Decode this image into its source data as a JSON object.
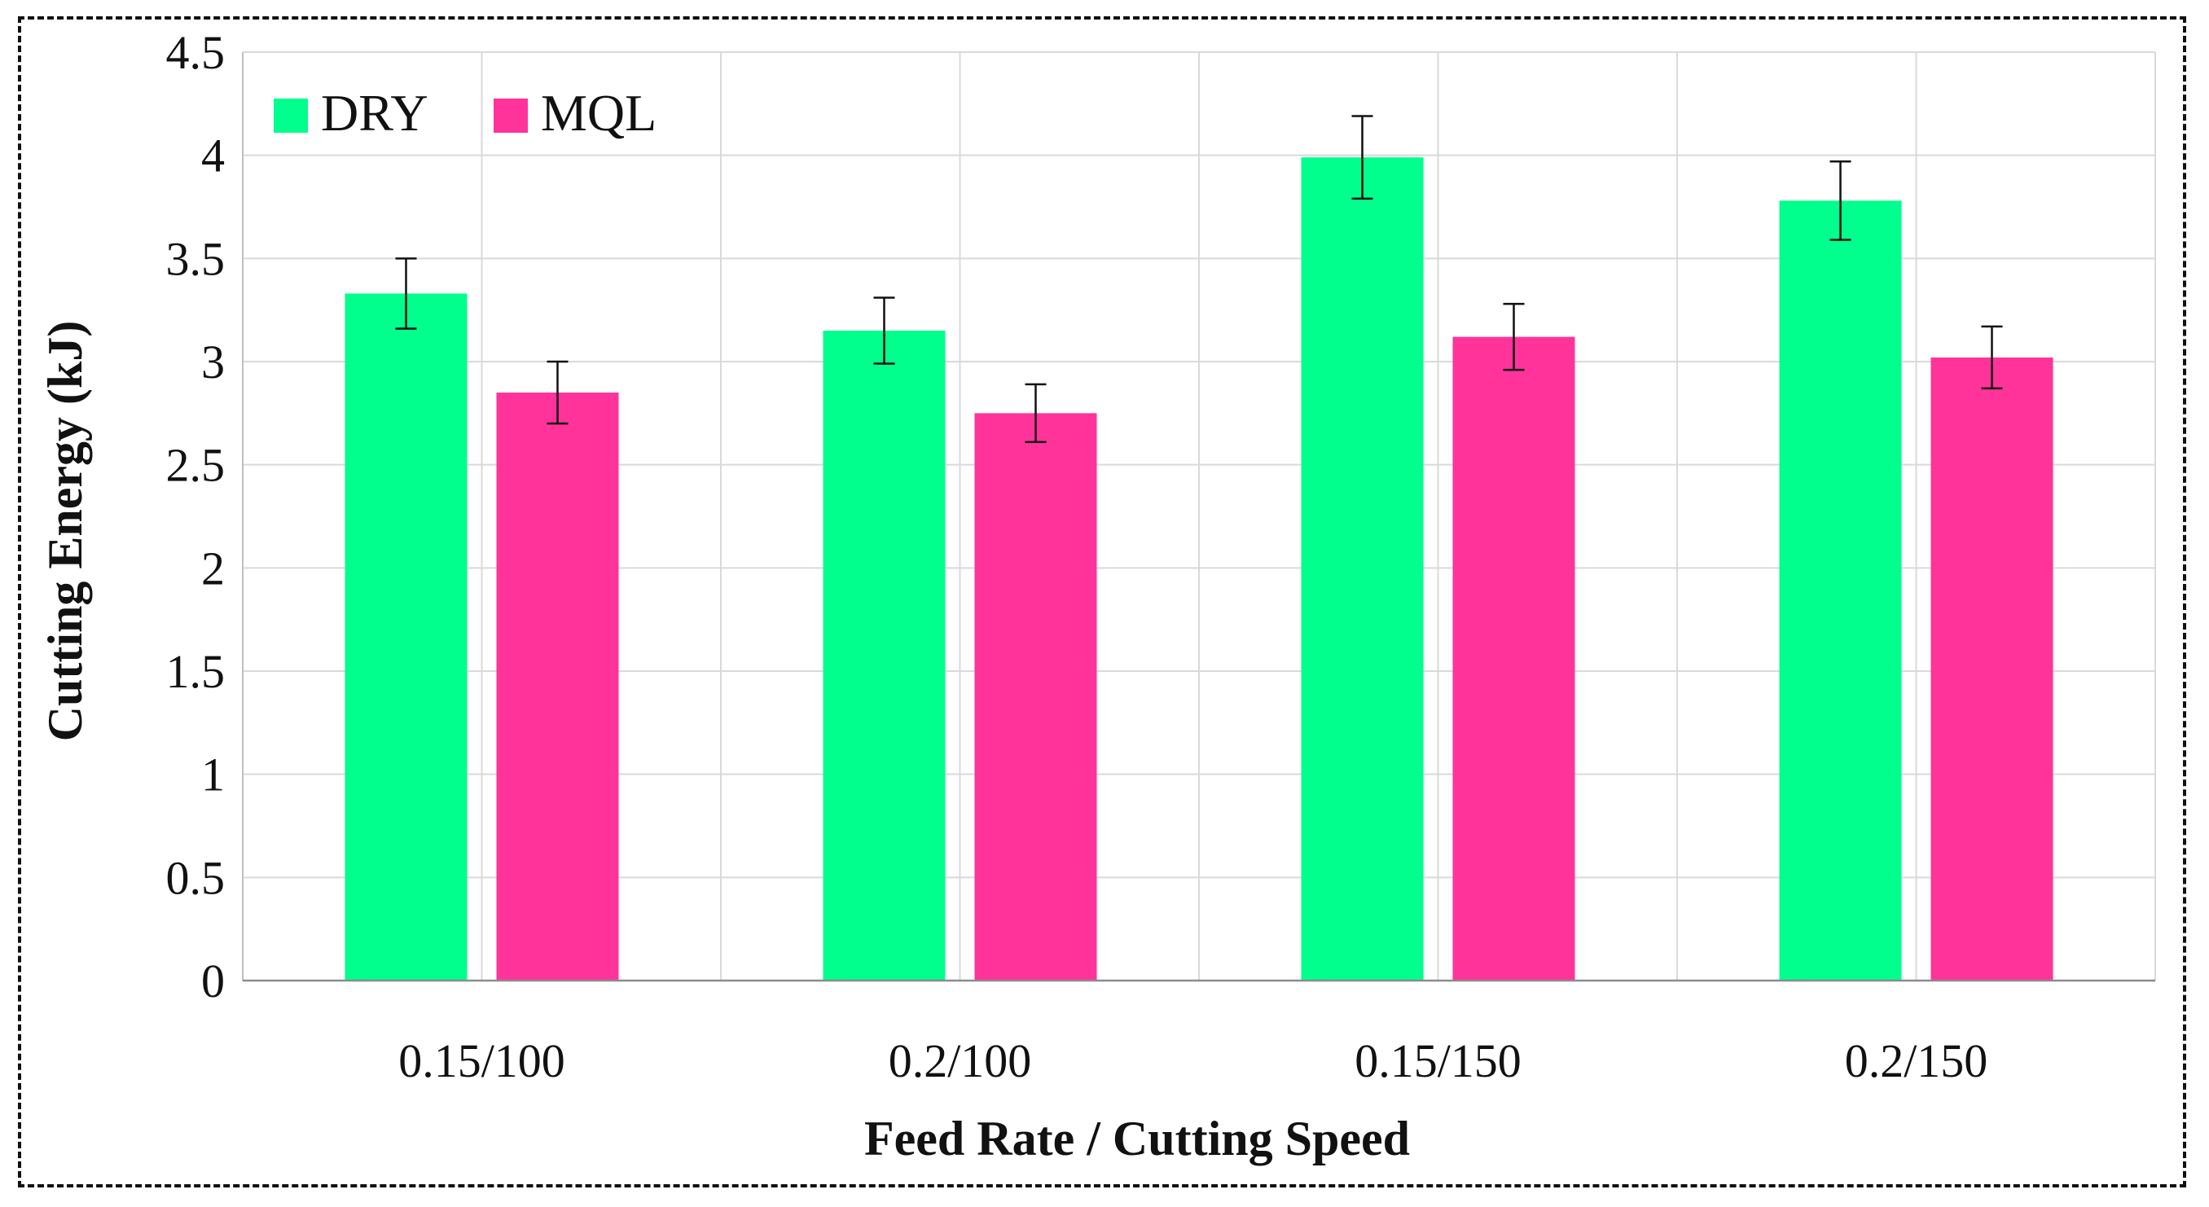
{
  "chart_data": {
    "type": "bar",
    "title": "",
    "xlabel": "Feed Rate / Cutting Speed",
    "ylabel": "Cutting Energy (kJ)",
    "ylim": [
      0,
      4.5
    ],
    "ytick_step": 0.5,
    "ytick_labels": [
      "0",
      "0.5",
      "1",
      "1.5",
      "2",
      "2.5",
      "3",
      "3.5",
      "4",
      "4.5"
    ],
    "categories": [
      "0.15/100",
      "0.2/100",
      "0.15/150",
      "0.2/150"
    ],
    "series": [
      {
        "name": "DRY",
        "color": "#00FF8C",
        "values": [
          3.33,
          3.15,
          3.99,
          3.78
        ],
        "error": [
          0.17,
          0.16,
          0.2,
          0.19
        ]
      },
      {
        "name": "MQL",
        "color": "#FF3399",
        "values": [
          2.85,
          2.75,
          3.12,
          3.02
        ],
        "error": [
          0.15,
          0.14,
          0.16,
          0.15
        ]
      }
    ],
    "grid": true,
    "legend_position": "top-left",
    "error_bars": true
  }
}
